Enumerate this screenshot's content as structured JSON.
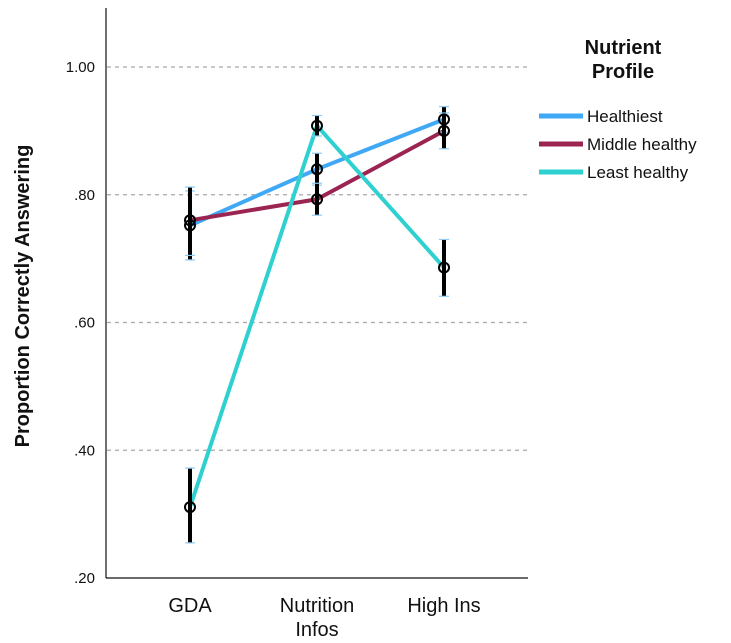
{
  "chart_data": {
    "type": "line",
    "ylabel": "Proportion Correctly Answering",
    "xlabel": "",
    "categories": [
      [
        "GDA"
      ],
      [
        "Nutrition",
        "Infos"
      ],
      [
        "High Ins"
      ]
    ],
    "ylim": [
      0.2,
      1.0
    ],
    "yticks": [
      0.2,
      0.4,
      0.6,
      0.8,
      1.0
    ],
    "ytick_labels": [
      ".20",
      ".40",
      ".60",
      ".80",
      "1.00"
    ],
    "grid": "horizontal dashed",
    "legend": {
      "title_lines": [
        "Nutrient",
        "Profile"
      ],
      "placement": "right"
    },
    "series": [
      {
        "name": "Healthiest",
        "color": "#3fa9f5",
        "values": [
          0.752,
          0.84,
          0.918
        ],
        "err_low": [
          0.698,
          0.815,
          0.898
        ],
        "err_high": [
          0.806,
          0.865,
          0.938
        ]
      },
      {
        "name": "Middle healthy",
        "color": "#9b2452",
        "values": [
          0.76,
          0.793,
          0.9
        ],
        "err_low": [
          0.705,
          0.768,
          0.872
        ],
        "err_high": [
          0.812,
          0.818,
          0.928
        ]
      },
      {
        "name": "Least healthy",
        "color": "#2ed1cf",
        "values": [
          0.311,
          0.908,
          0.686
        ],
        "err_low": [
          0.255,
          0.892,
          0.641
        ],
        "err_high": [
          0.372,
          0.924,
          0.73
        ]
      }
    ]
  }
}
